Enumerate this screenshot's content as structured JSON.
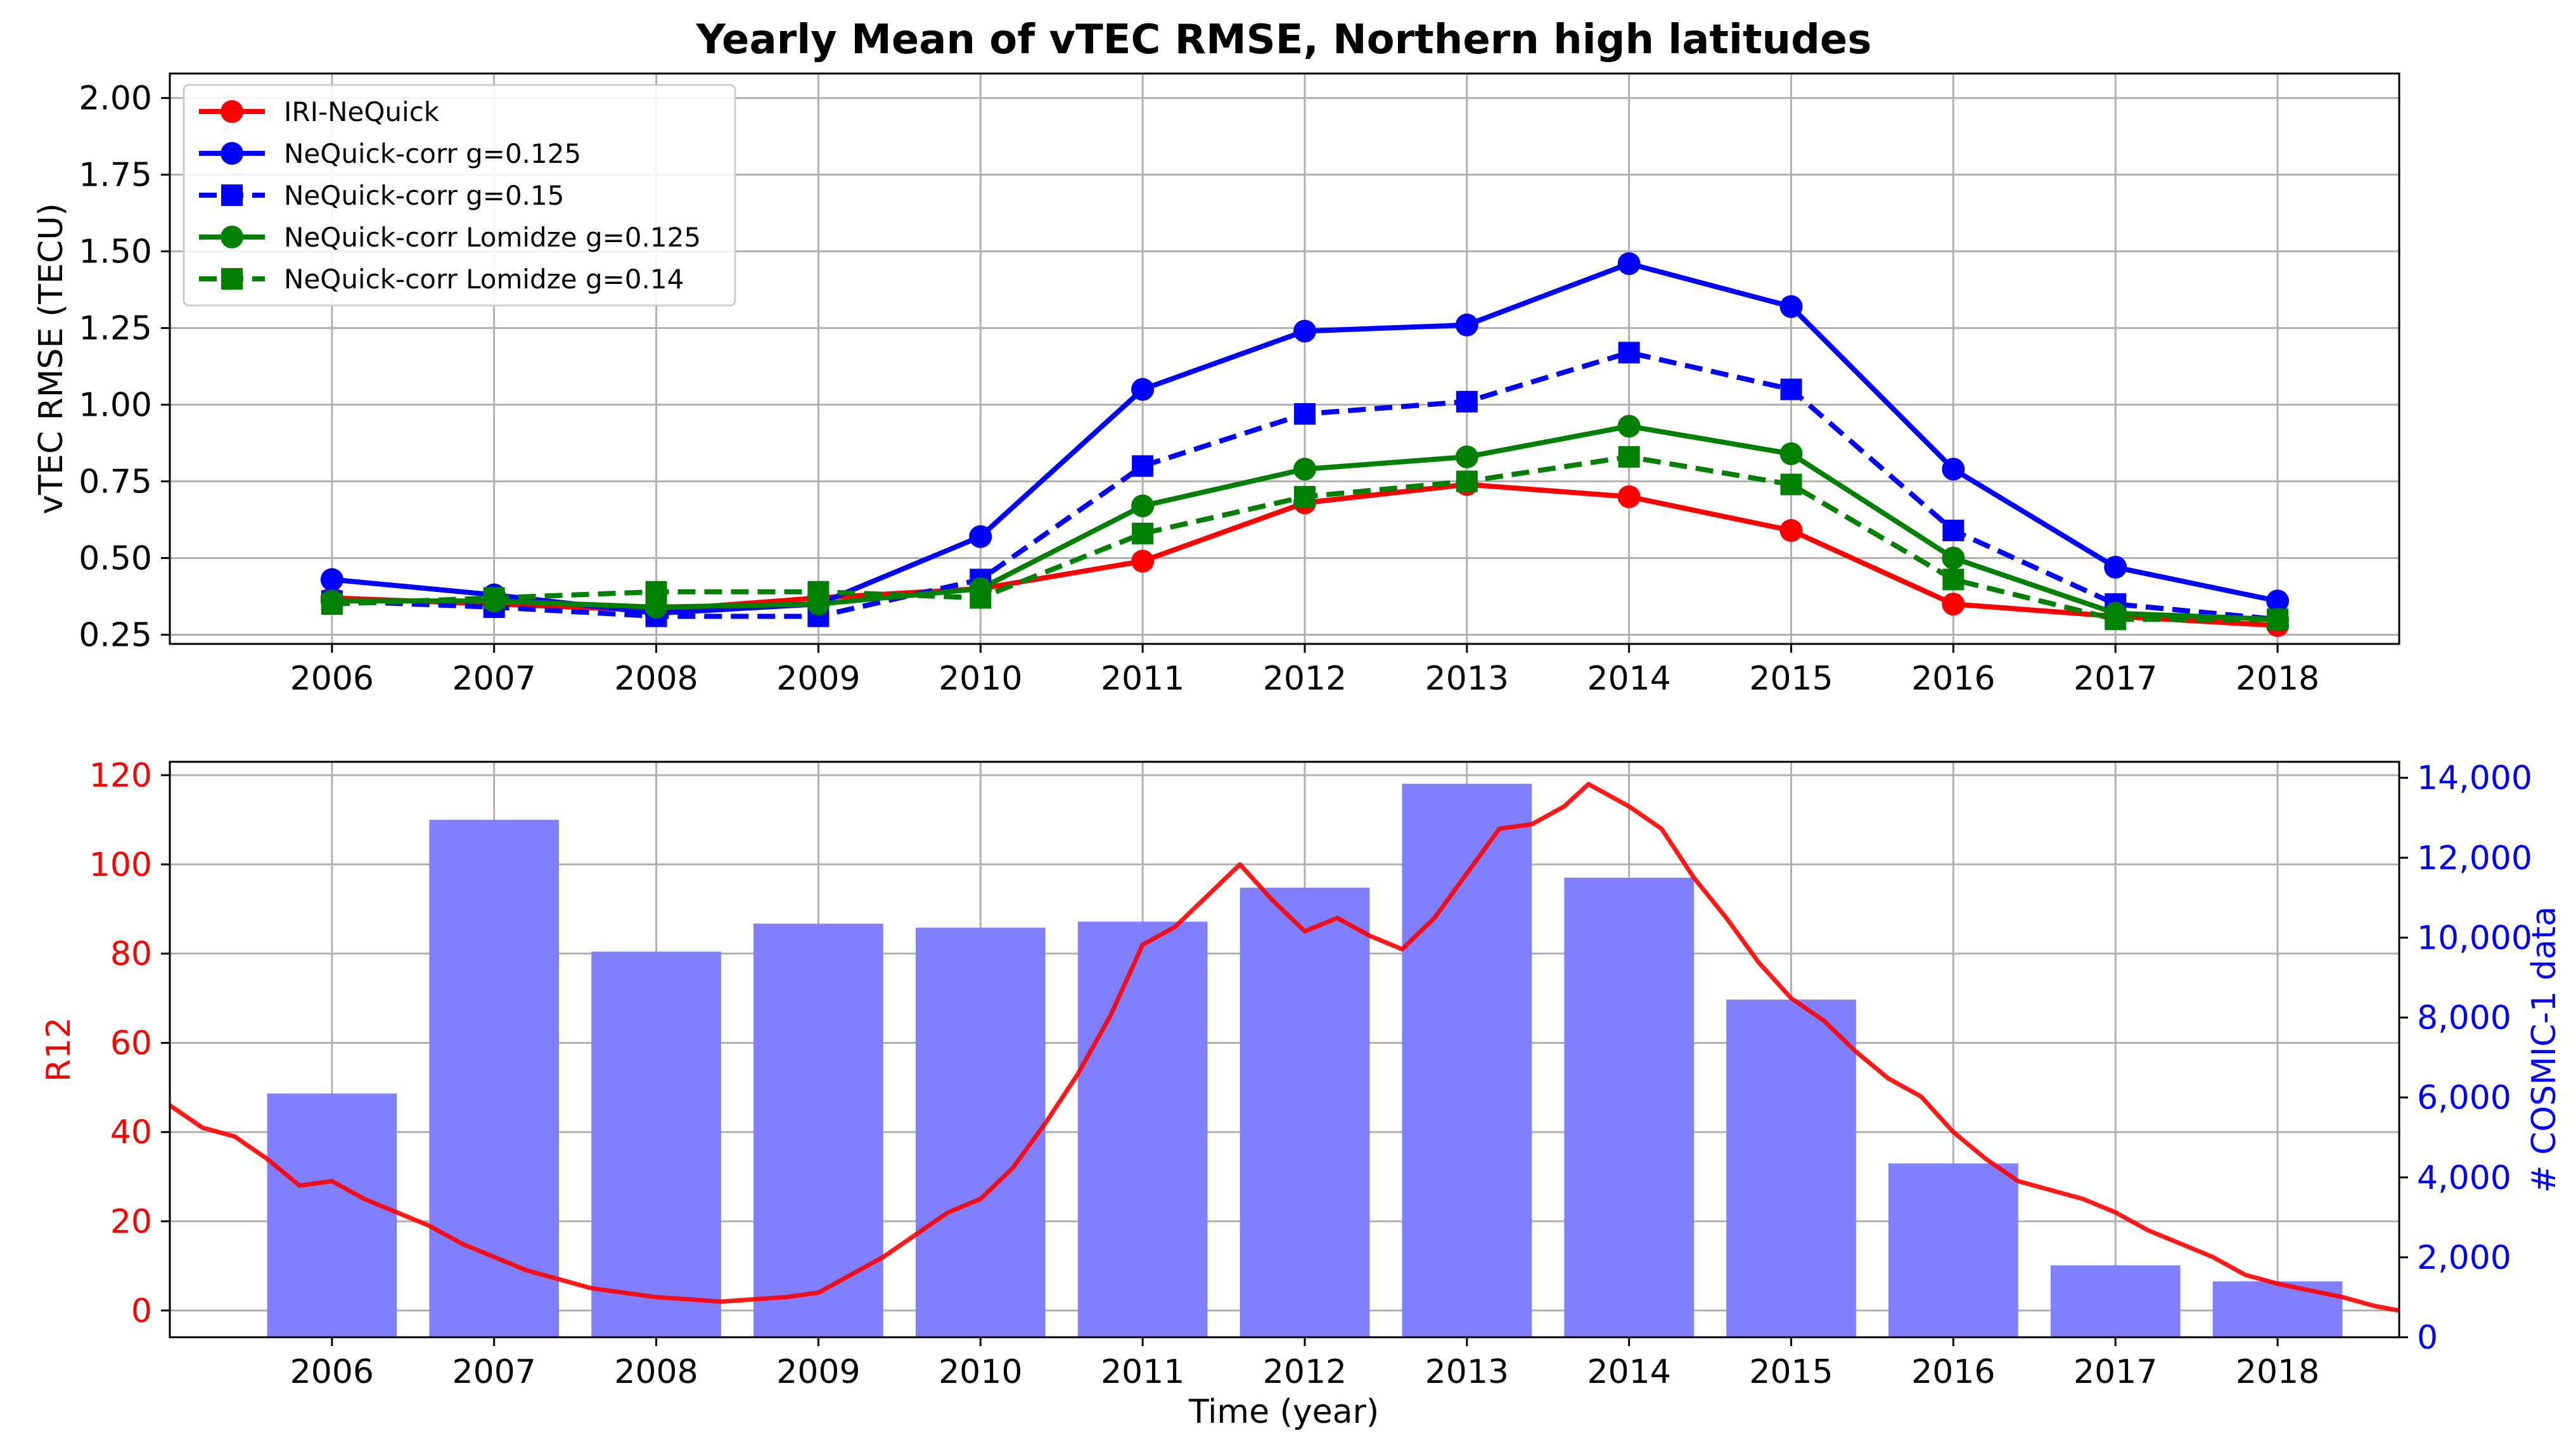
{
  "chart_data": [
    {
      "type": "line",
      "title": "Yearly Mean of vTEC RMSE, Northern high latitudes",
      "xlabel": "",
      "ylabel": "vTEC RMSE  (TECU)",
      "x": [
        2006,
        2007,
        2008,
        2009,
        2010,
        2011,
        2012,
        2013,
        2014,
        2015,
        2016,
        2017,
        2018
      ],
      "xlim": [
        2005,
        2018.75
      ],
      "ylim": [
        0.22,
        2.08
      ],
      "yticks": [
        0.25,
        0.5,
        0.75,
        1.0,
        1.25,
        1.5,
        1.75,
        2.0
      ],
      "ytick_labels": [
        "0.25",
        "0.50",
        "0.75",
        "1.00",
        "1.25",
        "1.50",
        "1.75",
        "2.00"
      ],
      "xtick_labels": [
        "2006",
        "2007",
        "2008",
        "2009",
        "2010",
        "2011",
        "2012",
        "2013",
        "2014",
        "2015",
        "2016",
        "2017",
        "2018"
      ],
      "grid": true,
      "legend_position": "top-left",
      "series": [
        {
          "name": "IRI-NeQuick",
          "color": "#ff0000",
          "marker": "circle",
          "dash": "solid",
          "values": [
            0.37,
            0.35,
            0.33,
            0.37,
            0.4,
            0.49,
            0.68,
            0.74,
            0.7,
            0.59,
            0.35,
            0.31,
            0.28
          ]
        },
        {
          "name": "NeQuick-corr g=0.125",
          "color": "#0000ff",
          "marker": "circle",
          "dash": "solid",
          "values": [
            0.43,
            0.38,
            0.32,
            0.35,
            0.57,
            1.05,
            1.24,
            1.26,
            1.46,
            1.32,
            0.79,
            0.47,
            0.36
          ]
        },
        {
          "name": "NeQuick-corr g=0.15",
          "color": "#0000ff",
          "marker": "square",
          "dash": "dashed",
          "values": [
            0.36,
            0.34,
            0.31,
            0.31,
            0.43,
            0.8,
            0.97,
            1.01,
            1.17,
            1.05,
            0.59,
            0.35,
            0.3
          ]
        },
        {
          "name": "NeQuick-corr Lomidze g=0.125",
          "color": "#008000",
          "marker": "circle",
          "dash": "solid",
          "values": [
            0.36,
            0.36,
            0.34,
            0.35,
            0.4,
            0.67,
            0.79,
            0.83,
            0.93,
            0.84,
            0.5,
            0.32,
            0.3
          ]
        },
        {
          "name": "NeQuick-corr Lomidze g=0.14",
          "color": "#008000",
          "marker": "square",
          "dash": "dashed",
          "values": [
            0.35,
            0.37,
            0.39,
            0.39,
            0.37,
            0.58,
            0.7,
            0.75,
            0.83,
            0.74,
            0.43,
            0.3,
            0.3
          ]
        }
      ]
    },
    {
      "type": "bar",
      "title": "",
      "xlabel": "Time (year)",
      "ylabel": "R12",
      "y2label": "# COSMIC-1 data",
      "categories": [
        "2006",
        "2007",
        "2008",
        "2009",
        "2010",
        "2011",
        "2012",
        "2013",
        "2014",
        "2015",
        "2016",
        "2017",
        "2018"
      ],
      "bar_x": [
        2006,
        2007,
        2008,
        2009,
        2010,
        2011,
        2012,
        2013,
        2014,
        2015,
        2016,
        2017,
        2018
      ],
      "bar_width": 0.8,
      "bar_color": "#8080ff",
      "bar_series_name": "# COSMIC-1 data",
      "values": [
        6100,
        12950,
        9650,
        10350,
        10250,
        10400,
        11250,
        13850,
        11500,
        8450,
        4350,
        1800,
        1400
      ],
      "xlim": [
        2005,
        2018.75
      ],
      "ylim": [
        -6,
        123
      ],
      "y2lim": [
        0,
        14400
      ],
      "yticks": [
        0,
        20,
        40,
        60,
        80,
        100,
        120
      ],
      "ytick_labels": [
        "0",
        "20",
        "40",
        "60",
        "80",
        "100",
        "120"
      ],
      "y2ticks": [
        0,
        2000,
        4000,
        6000,
        8000,
        10000,
        12000,
        14000
      ],
      "y2tick_labels": [
        "0",
        "2,000",
        "4,000",
        "6,000",
        "8,000",
        "10,000",
        "12,000",
        "14,000"
      ],
      "xtick_labels": [
        "2006",
        "2007",
        "2008",
        "2009",
        "2010",
        "2011",
        "2012",
        "2013",
        "2014",
        "2015",
        "2016",
        "2017",
        "2018"
      ],
      "grid": true,
      "line_series": {
        "name": "R12",
        "color": "#ff0000",
        "x": [
          2005.0,
          2005.2,
          2005.4,
          2005.6,
          2005.8,
          2006.0,
          2006.2,
          2006.4,
          2006.6,
          2006.8,
          2007.0,
          2007.2,
          2007.4,
          2007.6,
          2007.8,
          2008.0,
          2008.2,
          2008.4,
          2008.6,
          2008.8,
          2009.0,
          2009.2,
          2009.4,
          2009.6,
          2009.8,
          2010.0,
          2010.2,
          2010.4,
          2010.6,
          2010.8,
          2011.0,
          2011.2,
          2011.4,
          2011.6,
          2011.8,
          2012.0,
          2012.2,
          2012.4,
          2012.6,
          2012.8,
          2013.0,
          2013.2,
          2013.4,
          2013.6,
          2013.75,
          2013.9,
          2014.0,
          2014.2,
          2014.4,
          2014.6,
          2014.8,
          2015.0,
          2015.2,
          2015.4,
          2015.6,
          2015.8,
          2016.0,
          2016.2,
          2016.4,
          2016.6,
          2016.8,
          2017.0,
          2017.2,
          2017.4,
          2017.6,
          2017.8,
          2018.0,
          2018.2,
          2018.4,
          2018.6,
          2018.75
        ],
        "values": [
          46,
          41,
          39,
          34,
          28,
          29,
          25,
          22,
          19,
          15,
          12,
          9,
          7,
          5,
          4,
          3,
          2.5,
          2,
          2.5,
          3,
          4,
          8,
          12,
          17,
          22,
          25,
          32,
          42,
          53,
          66,
          82,
          86,
          93,
          100,
          92,
          85,
          88,
          84,
          81,
          88,
          98,
          108,
          109,
          113,
          118,
          115,
          113,
          108,
          97,
          88,
          78,
          70,
          65,
          58,
          52,
          48,
          40,
          34,
          29,
          27,
          25,
          22,
          18,
          15,
          12,
          8,
          6,
          4.5,
          3,
          1,
          0
        ]
      }
    }
  ]
}
